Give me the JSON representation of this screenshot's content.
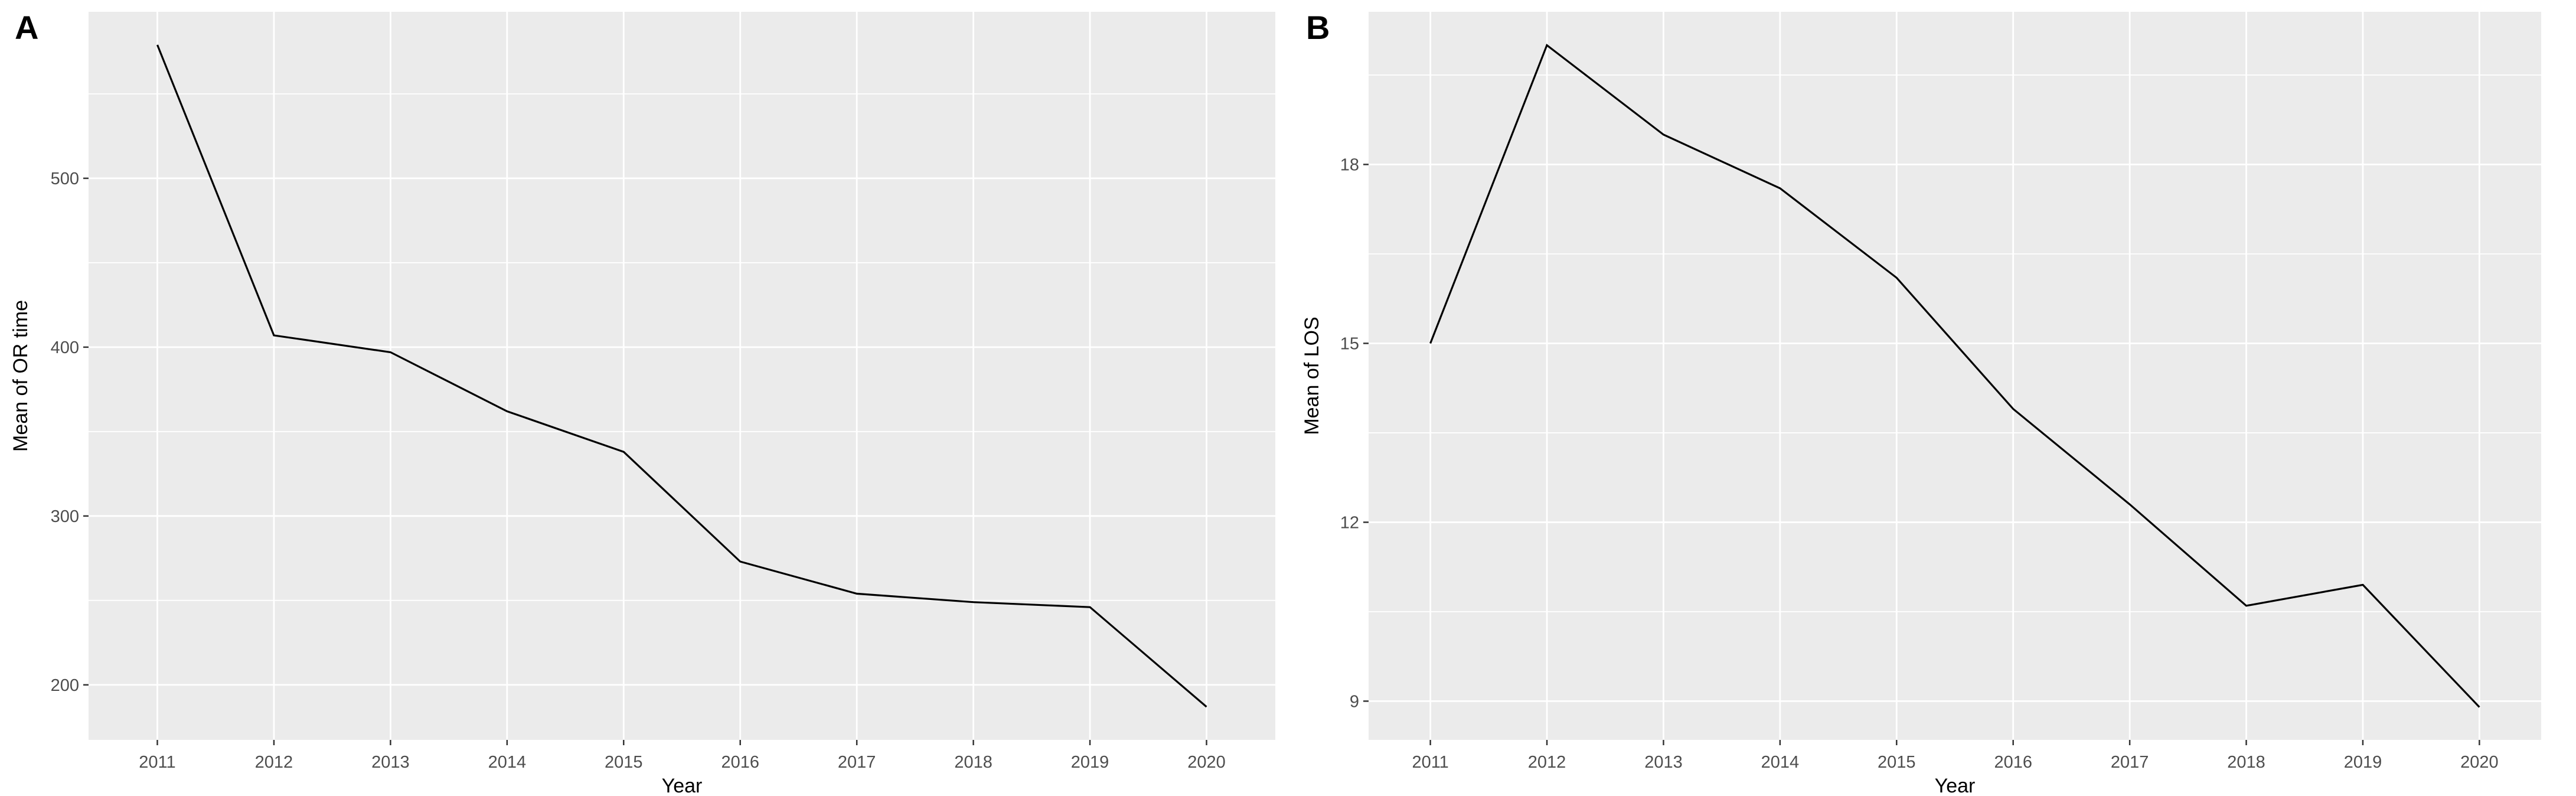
{
  "figure": {
    "background": "#FFFFFF",
    "panel_tags": [
      "A",
      "B"
    ]
  },
  "chart_data": [
    {
      "id": "panel-a",
      "type": "line",
      "tag": "A",
      "title": "",
      "xlabel": "Year",
      "ylabel": "Mean of OR time",
      "x": [
        2011,
        2012,
        2013,
        2014,
        2015,
        2016,
        2017,
        2018,
        2019,
        2020
      ],
      "values": [
        579,
        407,
        397,
        362,
        338,
        273,
        254,
        249,
        246,
        187
      ],
      "x_ticks": [
        2011,
        2012,
        2013,
        2014,
        2015,
        2016,
        2017,
        2018,
        2019,
        2020
      ],
      "x_tick_labels": [
        "2011",
        "2012",
        "2013",
        "2014",
        "2015",
        "2016",
        "2017",
        "2018",
        "2019",
        "2020"
      ],
      "y_ticks": [
        200,
        300,
        400,
        500
      ],
      "y_tick_labels": [
        "200",
        "300",
        "400",
        "500"
      ],
      "y_minor_ticks": [
        250,
        350,
        450,
        550
      ],
      "xlim": [
        2010.41,
        2020.59
      ],
      "ylim": [
        167.4,
        598.6
      ],
      "grid": "on",
      "legend": "none",
      "colors": {
        "line": "#000000",
        "panel_bg": "#EBEBEB",
        "grid_major": "#FFFFFF",
        "grid_minor": "#FFFFFF",
        "tick_label": "#4D4D4D",
        "axis_title": "#000000",
        "tick_mark": "#333333",
        "tag": "#000000"
      }
    },
    {
      "id": "panel-b",
      "type": "line",
      "tag": "B",
      "title": "",
      "xlabel": "Year",
      "ylabel": "Mean of LOS",
      "x": [
        2011,
        2012,
        2013,
        2014,
        2015,
        2016,
        2017,
        2018,
        2019,
        2020
      ],
      "values": [
        15.0,
        20.0,
        18.5,
        17.6,
        16.1,
        13.9,
        12.3,
        10.6,
        10.95,
        8.9
      ],
      "x_ticks": [
        2011,
        2012,
        2013,
        2014,
        2015,
        2016,
        2017,
        2018,
        2019,
        2020
      ],
      "x_tick_labels": [
        "2011",
        "2012",
        "2013",
        "2014",
        "2015",
        "2016",
        "2017",
        "2018",
        "2019",
        "2020"
      ],
      "y_ticks": [
        9,
        12,
        15,
        18
      ],
      "y_tick_labels": [
        "9",
        "12",
        "15",
        "18"
      ],
      "y_minor_ticks": [
        10.5,
        13.5,
        16.5,
        19.5
      ],
      "xlim": [
        2010.47,
        2020.53
      ],
      "ylim": [
        8.35,
        20.56
      ],
      "grid": "on",
      "legend": "none",
      "colors": {
        "line": "#000000",
        "panel_bg": "#EBEBEB",
        "grid_major": "#FFFFFF",
        "grid_minor": "#FFFFFF",
        "tick_label": "#4D4D4D",
        "axis_title": "#000000",
        "tick_mark": "#333333",
        "tag": "#000000"
      }
    }
  ]
}
